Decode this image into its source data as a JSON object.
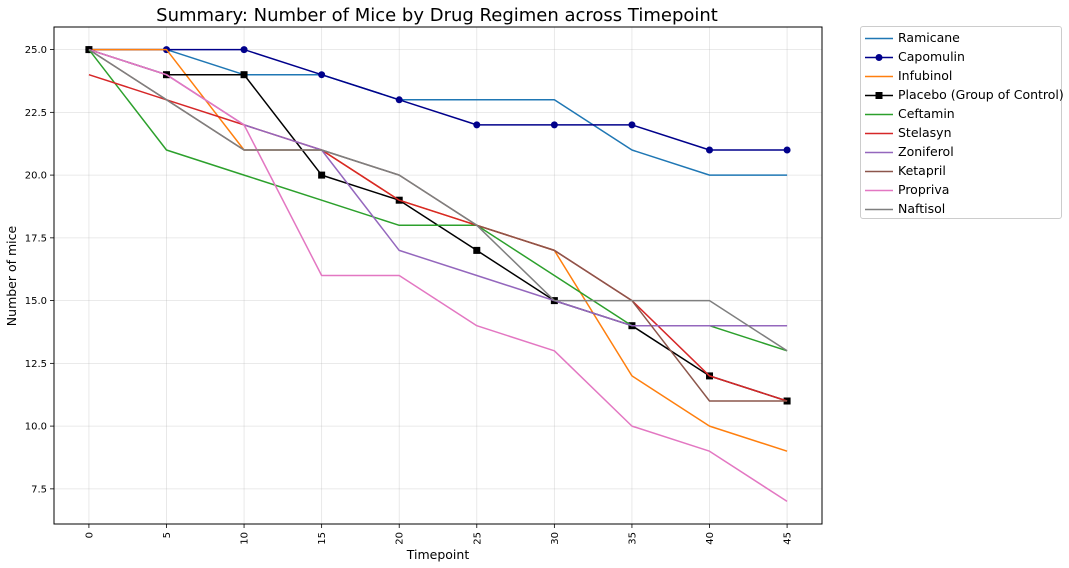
{
  "chart_data": {
    "type": "line",
    "title": "Summary: Number of Mice by Drug Regimen across Timepoint",
    "xlabel": "Timepoint",
    "ylabel": "Number of mice",
    "x": [
      0,
      5,
      10,
      15,
      20,
      25,
      30,
      35,
      40,
      45
    ],
    "x_tick_labels": [
      "0",
      "5",
      "10",
      "15",
      "20",
      "25",
      "30",
      "35",
      "40",
      "45"
    ],
    "y_ticks": [
      7.5,
      10.0,
      12.5,
      15.0,
      17.5,
      20.0,
      22.5,
      25.0
    ],
    "y_tick_labels": [
      "7.5",
      "10.0",
      "12.5",
      "15.0",
      "17.5",
      "20.0",
      "22.5",
      "25.0"
    ],
    "xlim": [
      -2.25,
      47.25
    ],
    "ylim": [
      6.1,
      25.9
    ],
    "grid": true,
    "legend_position": "outside-right-top",
    "series": [
      {
        "name": "Ramicane",
        "color": "#1f77b4",
        "marker": "none",
        "values": [
          25,
          25,
          24,
          24,
          23,
          23,
          23,
          21,
          20,
          20
        ]
      },
      {
        "name": "Capomulin",
        "color": "#00008b",
        "marker": "circle",
        "values": [
          25,
          25,
          25,
          24,
          23,
          22,
          22,
          22,
          21,
          21
        ]
      },
      {
        "name": "Infubinol",
        "color": "#ff7f0e",
        "marker": "none",
        "values": [
          25,
          25,
          21,
          21,
          19,
          18,
          17,
          12,
          10,
          9
        ]
      },
      {
        "name": "Placebo (Group of Control)",
        "color": "#000000",
        "marker": "square",
        "values": [
          25,
          24,
          24,
          20,
          19,
          17,
          15,
          14,
          12,
          11
        ]
      },
      {
        "name": "Ceftamin",
        "color": "#2ca02c",
        "marker": "none",
        "values": [
          25,
          21,
          20,
          19,
          18,
          18,
          16,
          14,
          14,
          13
        ]
      },
      {
        "name": "Stelasyn",
        "color": "#d62728",
        "marker": "none",
        "values": [
          24,
          23,
          22,
          21,
          19,
          18,
          17,
          15,
          12,
          11
        ]
      },
      {
        "name": "Zoniferol",
        "color": "#9467bd",
        "marker": "none",
        "values": [
          25,
          24,
          22,
          21,
          17,
          16,
          15,
          14,
          14,
          14
        ]
      },
      {
        "name": "Ketapril",
        "color": "#8c564b",
        "marker": "none",
        "values": [
          25,
          23,
          21,
          21,
          20,
          18,
          17,
          15,
          11,
          11
        ]
      },
      {
        "name": "Propriva",
        "color": "#e377c2",
        "marker": "none",
        "values": [
          25,
          24,
          22,
          16,
          16,
          14,
          13,
          10,
          9,
          7
        ]
      },
      {
        "name": "Naftisol",
        "color": "#7f7f7f",
        "marker": "none",
        "values": [
          25,
          23,
          21,
          21,
          20,
          18,
          15,
          15,
          15,
          13
        ]
      }
    ]
  }
}
